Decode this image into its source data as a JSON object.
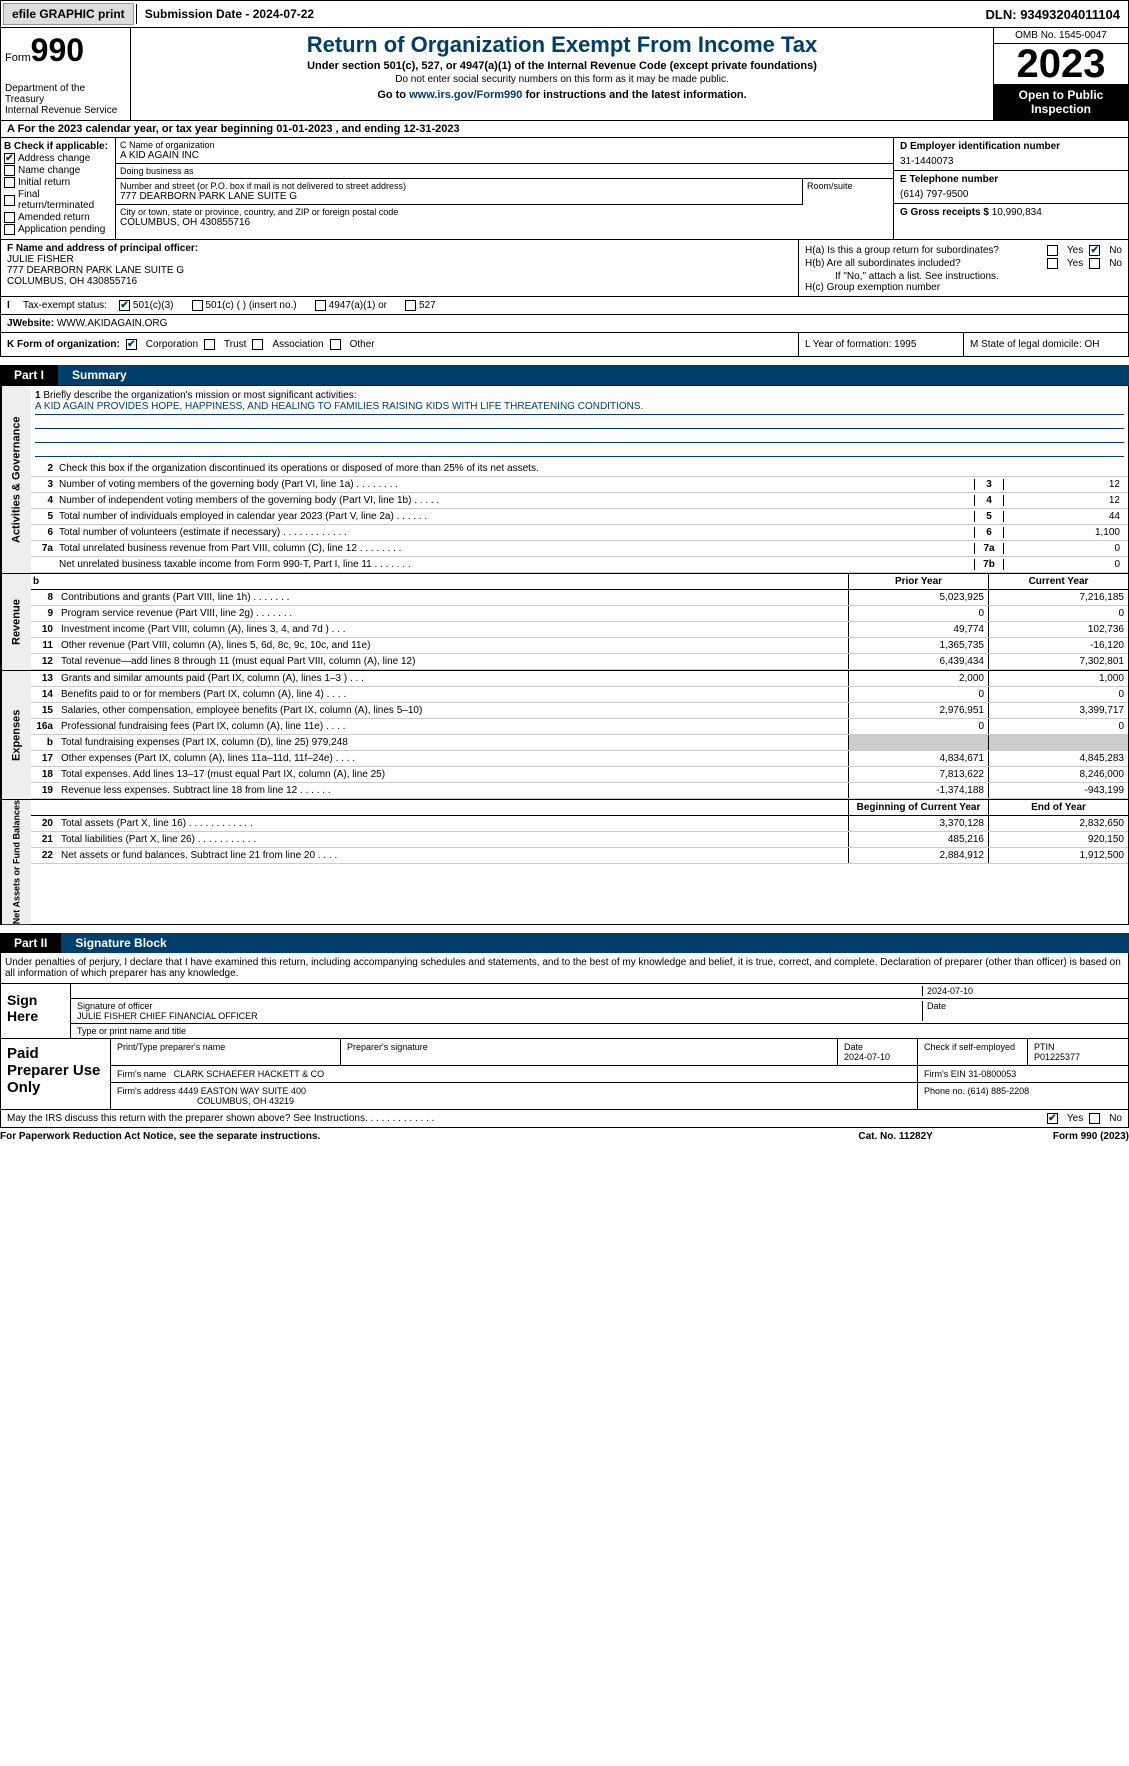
{
  "top": {
    "efile": "efile GRAPHIC print",
    "subdate_label": "Submission Date - ",
    "subdate": "2024-07-22",
    "dln_label": "DLN: ",
    "dln": "93493204011104"
  },
  "header": {
    "form_word": "Form",
    "form_no": "990",
    "dept": "Department of the Treasury\nInternal Revenue Service",
    "title": "Return of Organization Exempt From Income Tax",
    "sub1": "Under section 501(c), 527, or 4947(a)(1) of the Internal Revenue Code (except private foundations)",
    "sub2": "Do not enter social security numbers on this form as it may be made public.",
    "goto_pre": "Go to ",
    "goto_link": "www.irs.gov/Form990",
    "goto_post": " for instructions and the latest information.",
    "omb": "OMB No. 1545-0047",
    "year": "2023",
    "open": "Open to Public Inspection"
  },
  "lineA": "A  For the 2023 calendar year, or tax year beginning 01-01-2023    , and ending 12-31-2023",
  "b": {
    "header": "B Check if applicable:",
    "addr": "Address change",
    "name": "Name change",
    "init": "Initial return",
    "final": "Final return/terminated",
    "amend": "Amended return",
    "app": "Application pending"
  },
  "c": {
    "name_lbl": "C Name of organization",
    "name": "A KID AGAIN INC",
    "dba_lbl": "Doing business as",
    "dba": "",
    "street_lbl": "Number and street (or P.O. box if mail is not delivered to street address)",
    "street": "777 DEARBORN PARK LANE SUITE G",
    "room_lbl": "Room/suite",
    "city_lbl": "City or town, state or province, country, and ZIP or foreign postal code",
    "city": "COLUMBUS, OH   430855716"
  },
  "d": {
    "ein_lbl": "D Employer identification number",
    "ein": "31-1440073",
    "tel_lbl": "E Telephone number",
    "tel": "(614) 797-9500",
    "gross_lbl": "G Gross receipts $ ",
    "gross": "10,990,834"
  },
  "f": {
    "lbl": "F  Name and address of principal officer:",
    "name": "JULIE FISHER",
    "addr1": "777 DEARBORN PARK LANE SUITE G",
    "addr2": "COLUMBUS, OH  430855716"
  },
  "h": {
    "ha": "H(a)  Is this a group return for subordinates?",
    "hb": "H(b)  Are all subordinates included?",
    "hb_note": "If \"No,\" attach a list. See instructions.",
    "hc": "H(c)  Group exemption number",
    "yes": "Yes",
    "no": "No"
  },
  "i": {
    "lbl": "Tax-exempt status:",
    "o1": "501(c)(3)",
    "o2": "501(c) (  ) (insert no.)",
    "o3": "4947(a)(1) or",
    "o4": "527"
  },
  "j": {
    "lbl": "Website:",
    "val": "WWW.AKIDAGAIN.ORG"
  },
  "k": {
    "lbl": "K Form of organization:",
    "corp": "Corporation",
    "trust": "Trust",
    "assoc": "Association",
    "other": "Other",
    "l": "L Year of formation: 1995",
    "m": "M State of legal domicile: OH"
  },
  "part1": {
    "lbl": "Part I",
    "title": "Summary"
  },
  "side_labels": {
    "ag": "Activities & Governance",
    "rev": "Revenue",
    "exp": "Expenses",
    "na": "Net Assets or Fund Balances"
  },
  "line1": {
    "num": "1",
    "text": "Briefly describe the organization's mission or most significant activities:",
    "mission": "A KID AGAIN PROVIDES HOPE, HAPPINESS, AND HEALING TO FAMILIES RAISING KIDS WITH LIFE THREATENING CONDITIONS."
  },
  "line2": {
    "num": "2",
    "text": "Check this box       if the organization discontinued its operations or disposed of more than 25% of its net assets."
  },
  "ag_lines": [
    {
      "num": "3",
      "text": "Number of voting members of the governing body (Part VI, line 1a)   .    .    .    .    .    .    .    .",
      "box": "3",
      "val": "12"
    },
    {
      "num": "4",
      "text": "Number of independent voting members of the governing body (Part VI, line 1b)   .    .    .    .    .",
      "box": "4",
      "val": "12"
    },
    {
      "num": "5",
      "text": "Total number of individuals employed in calendar year 2023 (Part V, line 2a)   .    .    .    .    .    .",
      "box": "5",
      "val": "44"
    },
    {
      "num": "6",
      "text": "Total number of volunteers (estimate if necessary)    .    .    .    .    .    .    .    .    .    .    .    .",
      "box": "6",
      "val": "1,100"
    },
    {
      "num": "7a",
      "text": "Total unrelated business revenue from Part VIII, column (C), line 12   .    .    .    .    .    .    .    .",
      "box": "7a",
      "val": "0"
    },
    {
      "num": "",
      "text": "Net unrelated business taxable income from Form 990-T, Part I, line 11   .    .    .    .    .    .    .",
      "box": "7b",
      "val": "0"
    }
  ],
  "rev_hdr": {
    "b": "b",
    "prior": "Prior Year",
    "curr": "Current Year"
  },
  "rev_lines": [
    {
      "num": "8",
      "text": "Contributions and grants (Part VIII, line 1h)   .    .    .    .    .    .    .",
      "p": "5,023,925",
      "c": "7,216,185"
    },
    {
      "num": "9",
      "text": "Program service revenue (Part VIII, line 2g)   .    .    .    .    .    .    .",
      "p": "0",
      "c": "0"
    },
    {
      "num": "10",
      "text": "Investment income (Part VIII, column (A), lines 3, 4, and 7d )   .    .    .",
      "p": "49,774",
      "c": "102,736"
    },
    {
      "num": "11",
      "text": "Other revenue (Part VIII, column (A), lines 5, 6d, 8c, 9c, 10c, and 11e)",
      "p": "1,365,735",
      "c": "-16,120"
    },
    {
      "num": "12",
      "text": "Total revenue—add lines 8 through 11 (must equal Part VIII, column (A), line 12)",
      "p": "6,439,434",
      "c": "7,302,801"
    }
  ],
  "exp_lines": [
    {
      "num": "13",
      "text": "Grants and similar amounts paid (Part IX, column (A), lines 1–3 )  .    .    .",
      "p": "2,000",
      "c": "1,000"
    },
    {
      "num": "14",
      "text": "Benefits paid to or for members (Part IX, column (A), line 4)   .    .    .    .",
      "p": "0",
      "c": "0"
    },
    {
      "num": "15",
      "text": "Salaries, other compensation, employee benefits (Part IX, column (A), lines 5–10)",
      "p": "2,976,951",
      "c": "3,399,717"
    },
    {
      "num": "16a",
      "text": "Professional fundraising fees (Part IX, column (A), line 11e)  .    .    .    .",
      "p": "0",
      "c": "0"
    },
    {
      "num": "b",
      "text": "Total fundraising expenses (Part IX, column (D), line 25) 979,248",
      "p": "",
      "c": "",
      "shaded": true
    },
    {
      "num": "17",
      "text": "Other expenses (Part IX, column (A), lines 11a–11d, 11f–24e)   .    .    .    .",
      "p": "4,834,671",
      "c": "4,845,283"
    },
    {
      "num": "18",
      "text": "Total expenses. Add lines 13–17 (must equal Part IX, column (A), line 25)",
      "p": "7,813,622",
      "c": "8,246,000"
    },
    {
      "num": "19",
      "text": "Revenue less expenses. Subtract line 18 from line 12   .    .    .    .    .    .",
      "p": "-1,374,188",
      "c": "-943,199"
    }
  ],
  "na_hdr": {
    "beg": "Beginning of Current Year",
    "end": "End of Year"
  },
  "na_lines": [
    {
      "num": "20",
      "text": "Total assets (Part X, line 16)    .    .    .    .    .    .    .    .    .    .    .    .",
      "p": "3,370,128",
      "c": "2,832,650"
    },
    {
      "num": "21",
      "text": "Total liabilities (Part X, line 26)    .    .    .    .    .    .    .    .    .    .    .",
      "p": "485,216",
      "c": "920,150"
    },
    {
      "num": "22",
      "text": "Net assets or fund balances. Subtract line 21 from line 20   .    .    .    .",
      "p": "2,884,912",
      "c": "1,912,500"
    }
  ],
  "part2": {
    "lbl": "Part II",
    "title": "Signature Block"
  },
  "sig_text": "Under penalties of perjury, I declare that I have examined this return, including accompanying schedules and statements, and to the best of my knowledge and belief, it is true, correct, and complete. Declaration of preparer (other than officer) is based on all information of which preparer has any knowledge.",
  "sign": {
    "lbl": "Sign Here",
    "date": "2024-07-10",
    "sig_lbl": "Signature of officer",
    "date_lbl": "Date",
    "officer": "JULIE FISHER  CHIEF FINANCIAL OFFICER",
    "type_lbl": "Type or print name and title"
  },
  "paid": {
    "lbl": "Paid Preparer Use Only",
    "h1": "Print/Type preparer's name",
    "h2": "Preparer's signature",
    "h3": "Date",
    "h4": "Check         if self-employed",
    "h5": "PTIN",
    "date": "2024-07-10",
    "ptin": "P01225377",
    "firm_lbl": "Firm's name",
    "firm": "CLARK SCHAEFER HACKETT & CO",
    "ein_lbl": "Firm's EIN",
    "ein": "31-0800053",
    "addr_lbl": "Firm's address",
    "addr1": "4449 EASTON WAY SUITE 400",
    "addr2": "COLUMBUS, OH  43219",
    "phone_lbl": "Phone no.",
    "phone": "(614) 885-2208"
  },
  "discuss": "May the IRS discuss this return with the preparer shown above? See Instructions.    .    .    .    .    .    .    .    .    .    .    .    .",
  "footer": {
    "l": "For Paperwork Reduction Act Notice, see the separate instructions.",
    "m": "Cat. No. 11282Y",
    "r": "Form 990 (2023)"
  }
}
